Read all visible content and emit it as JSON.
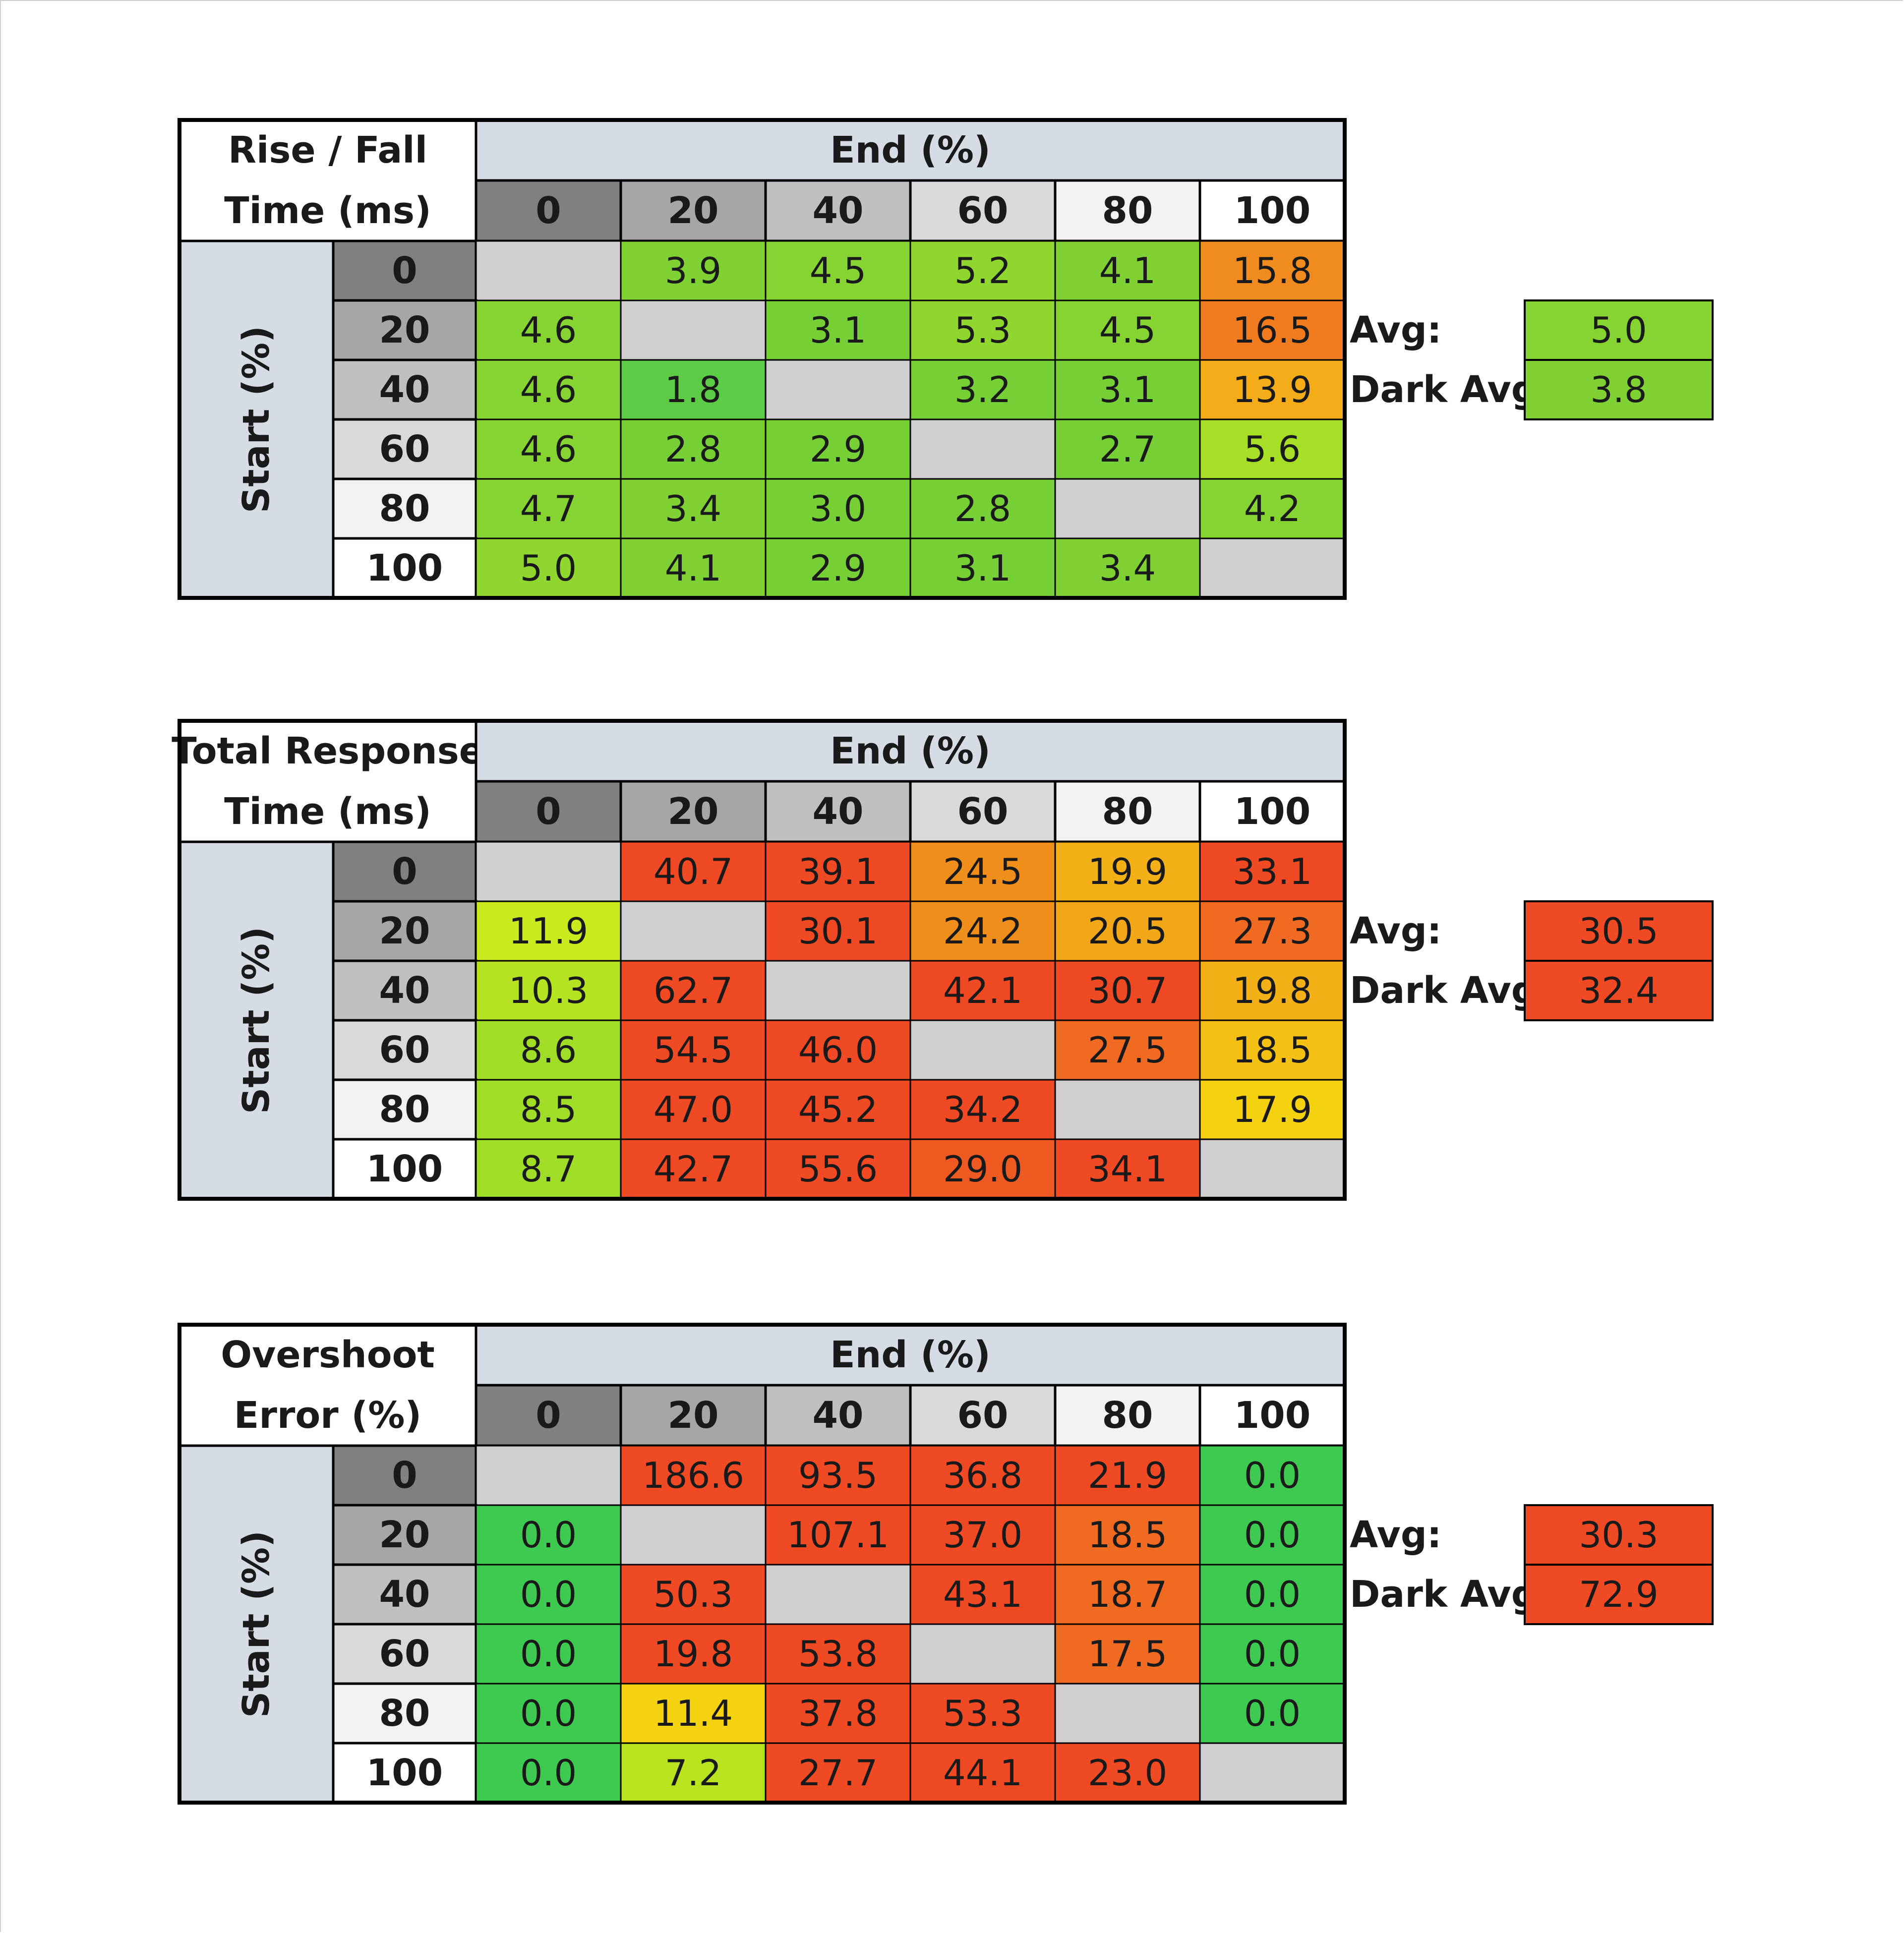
{
  "chart_data": [
    {
      "type": "heatmap",
      "title_lines": [
        "Rise / Fall",
        "Time (ms)"
      ],
      "col_header": "End (%)",
      "row_header": "Start (%)",
      "columns": [
        "0",
        "20",
        "40",
        "60",
        "80",
        "100"
      ],
      "rows": [
        "0",
        "20",
        "40",
        "60",
        "80",
        "100"
      ],
      "values": [
        [
          null,
          "3.9",
          "4.5",
          "5.2",
          "4.1",
          "15.8"
        ],
        [
          "4.6",
          null,
          "3.1",
          "5.3",
          "4.5",
          "16.5"
        ],
        [
          "4.6",
          "1.8",
          null,
          "3.2",
          "3.1",
          "13.9"
        ],
        [
          "4.6",
          "2.8",
          "2.9",
          null,
          "2.7",
          "5.6"
        ],
        [
          "4.7",
          "3.4",
          "3.0",
          "2.8",
          null,
          "4.2"
        ],
        [
          "5.0",
          "4.1",
          "2.9",
          "3.1",
          "3.4",
          null
        ]
      ],
      "colors": [
        [
          null,
          "#7fd133",
          "#85d431",
          "#8fd72e",
          "#7fd133",
          "#f08c1d"
        ],
        [
          "#86d431",
          null,
          "#75cf35",
          "#8fd72e",
          "#85d431",
          "#f17b1f"
        ],
        [
          "#86d431",
          "#5ccb45",
          null,
          "#75cf35",
          "#75cf35",
          "#f4ad18"
        ],
        [
          "#86d431",
          "#75cf35",
          "#75cf35",
          null,
          "#75cf35",
          "#a6df25"
        ],
        [
          "#86d431",
          "#7fd133",
          "#75cf35",
          "#75cf35",
          null,
          "#86d431"
        ],
        [
          "#8fd72e",
          "#7fd133",
          "#75cf35",
          "#75cf35",
          "#7fd133",
          null
        ]
      ],
      "summary": {
        "avg_label": "Avg:",
        "avg_value": "5.0",
        "avg_color": "#86d431",
        "dark_avg_label": "Dark Avg:",
        "dark_avg_value": "3.8",
        "dark_avg_color": "#7fd133"
      }
    },
    {
      "type": "heatmap",
      "title_lines": [
        "Total Response",
        "Time (ms)"
      ],
      "col_header": "End (%)",
      "row_header": "Start (%)",
      "columns": [
        "0",
        "20",
        "40",
        "60",
        "80",
        "100"
      ],
      "rows": [
        "0",
        "20",
        "40",
        "60",
        "80",
        "100"
      ],
      "values": [
        [
          null,
          "40.7",
          "39.1",
          "24.5",
          "19.9",
          "33.1"
        ],
        [
          "11.9",
          null,
          "30.1",
          "24.2",
          "20.5",
          "27.3"
        ],
        [
          "10.3",
          "62.7",
          null,
          "42.1",
          "30.7",
          "19.8"
        ],
        [
          "8.6",
          "54.5",
          "46.0",
          null,
          "27.5",
          "18.5"
        ],
        [
          "8.5",
          "47.0",
          "45.2",
          "34.2",
          null,
          "17.9"
        ],
        [
          "8.7",
          "42.7",
          "55.6",
          "29.0",
          "34.1",
          null
        ]
      ],
      "colors": [
        [
          null,
          "#ef4a24",
          "#ef4a24",
          "#f08e1c",
          "#f4b117",
          "#ef4a24"
        ],
        [
          "#cbe91d",
          null,
          "#ef4a24",
          "#f08e1c",
          "#f2a718",
          "#f16a21"
        ],
        [
          "#b5e321",
          "#ef4a24",
          null,
          "#ef4a24",
          "#ef4a24",
          "#f4b117"
        ],
        [
          "#a0dd27",
          "#ef4a24",
          "#ef4a24",
          null,
          "#f16a21",
          "#f4c014"
        ],
        [
          "#a0dd27",
          "#ef4a24",
          "#ef4a24",
          "#ef4a24",
          null,
          "#f5d210"
        ],
        [
          "#a0dd27",
          "#ef4a24",
          "#ef4a24",
          "#ef5a22",
          "#ef4a24",
          null
        ]
      ],
      "summary": {
        "avg_label": "Avg:",
        "avg_value": "30.5",
        "avg_color": "#ef4a24",
        "dark_avg_label": "Dark Avg:",
        "dark_avg_value": "32.4",
        "dark_avg_color": "#ef4a24"
      }
    },
    {
      "type": "heatmap",
      "title_lines": [
        "Overshoot",
        "Error (%)"
      ],
      "col_header": "End (%)",
      "row_header": "Start (%)",
      "columns": [
        "0",
        "20",
        "40",
        "60",
        "80",
        "100"
      ],
      "rows": [
        "0",
        "20",
        "40",
        "60",
        "80",
        "100"
      ],
      "values": [
        [
          null,
          "186.6",
          "93.5",
          "36.8",
          "21.9",
          "0.0"
        ],
        [
          "0.0",
          null,
          "107.1",
          "37.0",
          "18.5",
          "0.0"
        ],
        [
          "0.0",
          "50.3",
          null,
          "43.1",
          "18.7",
          "0.0"
        ],
        [
          "0.0",
          "19.8",
          "53.8",
          null,
          "17.5",
          "0.0"
        ],
        [
          "0.0",
          "11.4",
          "37.8",
          "53.3",
          null,
          "0.0"
        ],
        [
          "0.0",
          "7.2",
          "27.7",
          "44.1",
          "23.0",
          null
        ]
      ],
      "colors": [
        [
          null,
          "#ef4a24",
          "#ef4a24",
          "#ef4a24",
          "#ef4a24",
          "#3ec950"
        ],
        [
          "#3ec950",
          null,
          "#ef4a24",
          "#ef4a24",
          "#f16a21",
          "#3ec950"
        ],
        [
          "#3ec950",
          "#ef4a24",
          null,
          "#ef4a24",
          "#f16a21",
          "#3ec950"
        ],
        [
          "#3ec950",
          "#ef4a24",
          "#ef4a24",
          null,
          "#f16a21",
          "#3ec950"
        ],
        [
          "#3ec950",
          "#f5d20f",
          "#ef4a24",
          "#ef4a24",
          null,
          "#3ec950"
        ],
        [
          "#3ec950",
          "#b9e31e",
          "#ef4a24",
          "#ef4a24",
          "#ef4a24",
          null
        ]
      ],
      "summary": {
        "avg_label": "Avg:",
        "avg_value": "30.3",
        "avg_color": "#ef4a24",
        "dark_avg_label": "Dark Avg:",
        "dark_avg_value": "72.9",
        "dark_avg_color": "#ef4a24"
      }
    }
  ],
  "palette": {
    "header_band": "#d6dce4",
    "diagonal_empty": "#d0cece",
    "level_shades": [
      "#808080",
      "#a6a6a6",
      "#bfbfbf",
      "#d9d9d9",
      "#f2f2f2",
      "#ffffff"
    ],
    "border": "#000000"
  }
}
